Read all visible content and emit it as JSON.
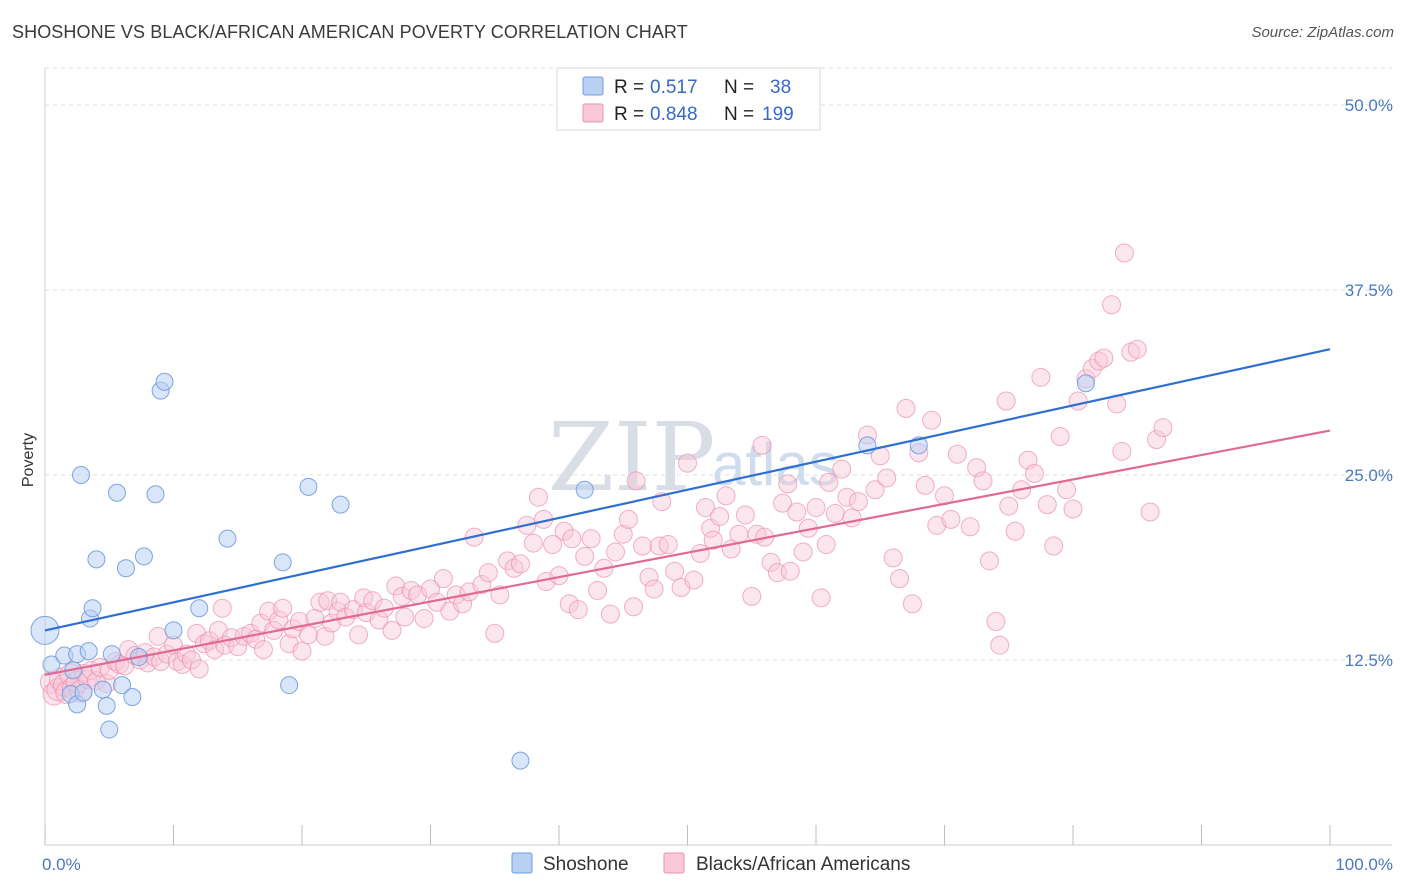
{
  "header": {
    "title": "SHOSHONE VS BLACK/AFRICAN AMERICAN POVERTY CORRELATION CHART",
    "source": "Source: ZipAtlas.com"
  },
  "watermark": {
    "zip": "ZIP",
    "atlas": "atlas"
  },
  "legend": {
    "rows": [
      {
        "r_label": "R =",
        "r_value": "0.517",
        "n_label": "N =",
        "n_value": "38",
        "color": "#8fb2e8"
      },
      {
        "r_label": "R =",
        "r_value": "0.848",
        "n_label": "N =",
        "n_value": "199",
        "color": "#f4a9c2"
      }
    ]
  },
  "bottom_legend": [
    {
      "label": "Shoshone",
      "color": "#8fb2e8"
    },
    {
      "label": "Blacks/African Americans",
      "color": "#f4a9c2"
    }
  ],
  "chart_data": {
    "type": "scatter",
    "title": "SHOSHONE VS BLACK/AFRICAN AMERICAN POVERTY CORRELATION CHART",
    "xlabel": "",
    "ylabel": "Poverty",
    "xlim": [
      0,
      100
    ],
    "ylim": [
      0,
      52.5
    ],
    "x_tick_labels": [
      "0.0%",
      "100.0%"
    ],
    "y_ticks": [
      12.5,
      25.0,
      37.5,
      50.0
    ],
    "y_tick_labels": [
      "12.5%",
      "25.0%",
      "37.5%",
      "50.0%"
    ],
    "grid": true,
    "series": [
      {
        "name": "Shoshone",
        "color": "#6f9ce0",
        "fill": "#b9d0f3",
        "line_color": "#2f6fd0",
        "trend": {
          "x": [
            0,
            100
          ],
          "y": [
            14.5,
            33.5
          ]
        },
        "points": [
          [
            0,
            14.5
          ],
          [
            0.5,
            12.2
          ],
          [
            1.5,
            12.8
          ],
          [
            2,
            10.2
          ],
          [
            2.2,
            11.8
          ],
          [
            2.5,
            12.9
          ],
          [
            2.5,
            9.5
          ],
          [
            3,
            10.3
          ],
          [
            2.8,
            25.0
          ],
          [
            3.4,
            13.1
          ],
          [
            3.5,
            15.3
          ],
          [
            3.7,
            16.0
          ],
          [
            4,
            19.3
          ],
          [
            4.5,
            10.5
          ],
          [
            4.8,
            9.4
          ],
          [
            5,
            7.8
          ],
          [
            5.2,
            12.9
          ],
          [
            5.6,
            23.8
          ],
          [
            6,
            10.8
          ],
          [
            6.3,
            18.7
          ],
          [
            6.8,
            10.0
          ],
          [
            7.3,
            12.7
          ],
          [
            7.7,
            19.5
          ],
          [
            8.6,
            23.7
          ],
          [
            9,
            30.7
          ],
          [
            9.3,
            31.3
          ],
          [
            10,
            14.5
          ],
          [
            12,
            16.0
          ],
          [
            14.2,
            20.7
          ],
          [
            18.5,
            19.1
          ],
          [
            19,
            10.8
          ],
          [
            20.5,
            24.2
          ],
          [
            23,
            23.0
          ],
          [
            37,
            5.7
          ],
          [
            42,
            24.0
          ],
          [
            64,
            27.0
          ],
          [
            68,
            27.0
          ],
          [
            81,
            31.2
          ]
        ]
      },
      {
        "name": "Blacks/African Americans",
        "color": "#ec8fae",
        "fill": "#f8c8d8",
        "line_color": "#e06a94",
        "trend": {
          "x": [
            0,
            100
          ],
          "y": [
            11.5,
            28.0
          ]
        },
        "points": [
          [
            0.5,
            11
          ],
          [
            0.7,
            10.2
          ],
          [
            1,
            10.5
          ],
          [
            1.2,
            11.2
          ],
          [
            1.5,
            10.8
          ],
          [
            1.7,
            10.3
          ],
          [
            2,
            11.5
          ],
          [
            2.2,
            10.6
          ],
          [
            2.5,
            11.0
          ],
          [
            2.8,
            10.4
          ],
          [
            3,
            11.6
          ],
          [
            3.3,
            11.2
          ],
          [
            3.6,
            11.8
          ],
          [
            4,
            11.1
          ],
          [
            4.3,
            12.0
          ],
          [
            4.8,
            10.9
          ],
          [
            5,
            11.8
          ],
          [
            5.5,
            12.4
          ],
          [
            5.8,
            12.2
          ],
          [
            6.2,
            12.1
          ],
          [
            6.5,
            13.2
          ],
          [
            7,
            12.8
          ],
          [
            7.4,
            12.5
          ],
          [
            7.8,
            13.0
          ],
          [
            8,
            12.3
          ],
          [
            8.5,
            12.7
          ],
          [
            8.8,
            14.1
          ],
          [
            9,
            12.4
          ],
          [
            9.5,
            12.9
          ],
          [
            10,
            13.5
          ],
          [
            10.3,
            12.4
          ],
          [
            10.7,
            12.2
          ],
          [
            11,
            12.9
          ],
          [
            11.4,
            12.5
          ],
          [
            11.8,
            14.3
          ],
          [
            12,
            11.9
          ],
          [
            12.4,
            13.6
          ],
          [
            12.8,
            13.8
          ],
          [
            13.2,
            13.2
          ],
          [
            13.5,
            14.5
          ],
          [
            13.8,
            16.0
          ],
          [
            14,
            13.5
          ],
          [
            14.5,
            14.0
          ],
          [
            15,
            13.4
          ],
          [
            15.5,
            14.1
          ],
          [
            16,
            14.3
          ],
          [
            16.4,
            13.9
          ],
          [
            16.8,
            15.0
          ],
          [
            17,
            13.2
          ],
          [
            17.4,
            15.8
          ],
          [
            17.8,
            14.5
          ],
          [
            18.2,
            15.2
          ],
          [
            18.5,
            16.0
          ],
          [
            19,
            13.6
          ],
          [
            19.3,
            14.6
          ],
          [
            19.8,
            15.1
          ],
          [
            20,
            13.1
          ],
          [
            20.5,
            14.2
          ],
          [
            21,
            15.3
          ],
          [
            21.4,
            16.4
          ],
          [
            21.8,
            14.1
          ],
          [
            22,
            16.5
          ],
          [
            22.3,
            15.0
          ],
          [
            22.8,
            15.8
          ],
          [
            23,
            16.4
          ],
          [
            23.4,
            15.4
          ],
          [
            24,
            15.9
          ],
          [
            24.4,
            14.2
          ],
          [
            24.8,
            16.7
          ],
          [
            25,
            15.7
          ],
          [
            25.5,
            16.5
          ],
          [
            26,
            15.2
          ],
          [
            26.4,
            16.0
          ],
          [
            27,
            14.5
          ],
          [
            27.3,
            17.5
          ],
          [
            27.8,
            16.8
          ],
          [
            28,
            15.4
          ],
          [
            28.5,
            17.2
          ],
          [
            29,
            16.9
          ],
          [
            29.5,
            15.3
          ],
          [
            30,
            17.3
          ],
          [
            30.5,
            16.4
          ],
          [
            31,
            18.0
          ],
          [
            31.5,
            15.8
          ],
          [
            32,
            16.9
          ],
          [
            32.5,
            16.3
          ],
          [
            33,
            17.1
          ],
          [
            33.4,
            20.8
          ],
          [
            34,
            17.6
          ],
          [
            34.5,
            18.4
          ],
          [
            35,
            14.3
          ],
          [
            35.4,
            16.9
          ],
          [
            36,
            19.2
          ],
          [
            36.5,
            18.7
          ],
          [
            37,
            19.0
          ],
          [
            37.5,
            21.6
          ],
          [
            38,
            20.4
          ],
          [
            38.4,
            23.5
          ],
          [
            38.8,
            22.0
          ],
          [
            39,
            17.8
          ],
          [
            39.5,
            20.3
          ],
          [
            40,
            18.2
          ],
          [
            40.4,
            21.2
          ],
          [
            40.8,
            16.3
          ],
          [
            41,
            20.7
          ],
          [
            41.5,
            15.9
          ],
          [
            42,
            19.5
          ],
          [
            42.5,
            20.7
          ],
          [
            43,
            17.2
          ],
          [
            43.5,
            18.7
          ],
          [
            44,
            15.6
          ],
          [
            44.4,
            19.8
          ],
          [
            45,
            21.0
          ],
          [
            45.4,
            22.0
          ],
          [
            45.8,
            16.1
          ],
          [
            46,
            24.6
          ],
          [
            46.5,
            20.2
          ],
          [
            47,
            18.1
          ],
          [
            47.4,
            17.3
          ],
          [
            47.8,
            20.2
          ],
          [
            48,
            23.2
          ],
          [
            48.5,
            20.3
          ],
          [
            49,
            18.5
          ],
          [
            49.5,
            17.4
          ],
          [
            50,
            25.8
          ],
          [
            50.5,
            17.9
          ],
          [
            51,
            19.7
          ],
          [
            51.4,
            22.8
          ],
          [
            51.8,
            21.4
          ],
          [
            52,
            20.6
          ],
          [
            52.5,
            22.2
          ],
          [
            53,
            23.6
          ],
          [
            53.4,
            20.0
          ],
          [
            54,
            21.0
          ],
          [
            54.5,
            22.3
          ],
          [
            55,
            16.8
          ],
          [
            55.4,
            21.0
          ],
          [
            55.8,
            27.0
          ],
          [
            56,
            20.8
          ],
          [
            56.5,
            19.1
          ],
          [
            57,
            18.4
          ],
          [
            57.4,
            23.1
          ],
          [
            57.8,
            24.4
          ],
          [
            58,
            18.5
          ],
          [
            58.5,
            22.5
          ],
          [
            59,
            19.8
          ],
          [
            59.4,
            21.4
          ],
          [
            60,
            22.8
          ],
          [
            60.4,
            16.7
          ],
          [
            60.8,
            20.3
          ],
          [
            61,
            24.5
          ],
          [
            61.5,
            22.4
          ],
          [
            62,
            25.4
          ],
          [
            62.4,
            23.5
          ],
          [
            62.8,
            22.1
          ],
          [
            63.3,
            23.2
          ],
          [
            64,
            27.7
          ],
          [
            64.6,
            24.0
          ],
          [
            65,
            26.3
          ],
          [
            65.5,
            24.8
          ],
          [
            66,
            19.4
          ],
          [
            66.5,
            18.0
          ],
          [
            67,
            29.5
          ],
          [
            67.5,
            16.3
          ],
          [
            68,
            26.5
          ],
          [
            68.5,
            24.3
          ],
          [
            69,
            28.7
          ],
          [
            69.4,
            21.6
          ],
          [
            70,
            23.6
          ],
          [
            70.5,
            22.0
          ],
          [
            71,
            26.4
          ],
          [
            72,
            21.5
          ],
          [
            72.5,
            25.5
          ],
          [
            73,
            24.6
          ],
          [
            73.5,
            19.2
          ],
          [
            74,
            15.1
          ],
          [
            74.3,
            13.5
          ],
          [
            74.8,
            30.0
          ],
          [
            75,
            22.9
          ],
          [
            75.5,
            21.2
          ],
          [
            76,
            24.0
          ],
          [
            76.5,
            26.0
          ],
          [
            77,
            25.1
          ],
          [
            77.5,
            31.6
          ],
          [
            78,
            23.0
          ],
          [
            78.5,
            20.2
          ],
          [
            79,
            27.6
          ],
          [
            79.5,
            24.0
          ],
          [
            80,
            22.7
          ],
          [
            80.4,
            30.0
          ],
          [
            81,
            31.5
          ],
          [
            81.5,
            32.2
          ],
          [
            82,
            32.7
          ],
          [
            82.4,
            32.9
          ],
          [
            83,
            36.5
          ],
          [
            83.4,
            29.8
          ],
          [
            83.8,
            26.6
          ],
          [
            84,
            40.0
          ],
          [
            84.5,
            33.3
          ],
          [
            85,
            33.5
          ],
          [
            86,
            22.5
          ],
          [
            86.5,
            27.4
          ],
          [
            87,
            28.2
          ]
        ]
      }
    ]
  }
}
